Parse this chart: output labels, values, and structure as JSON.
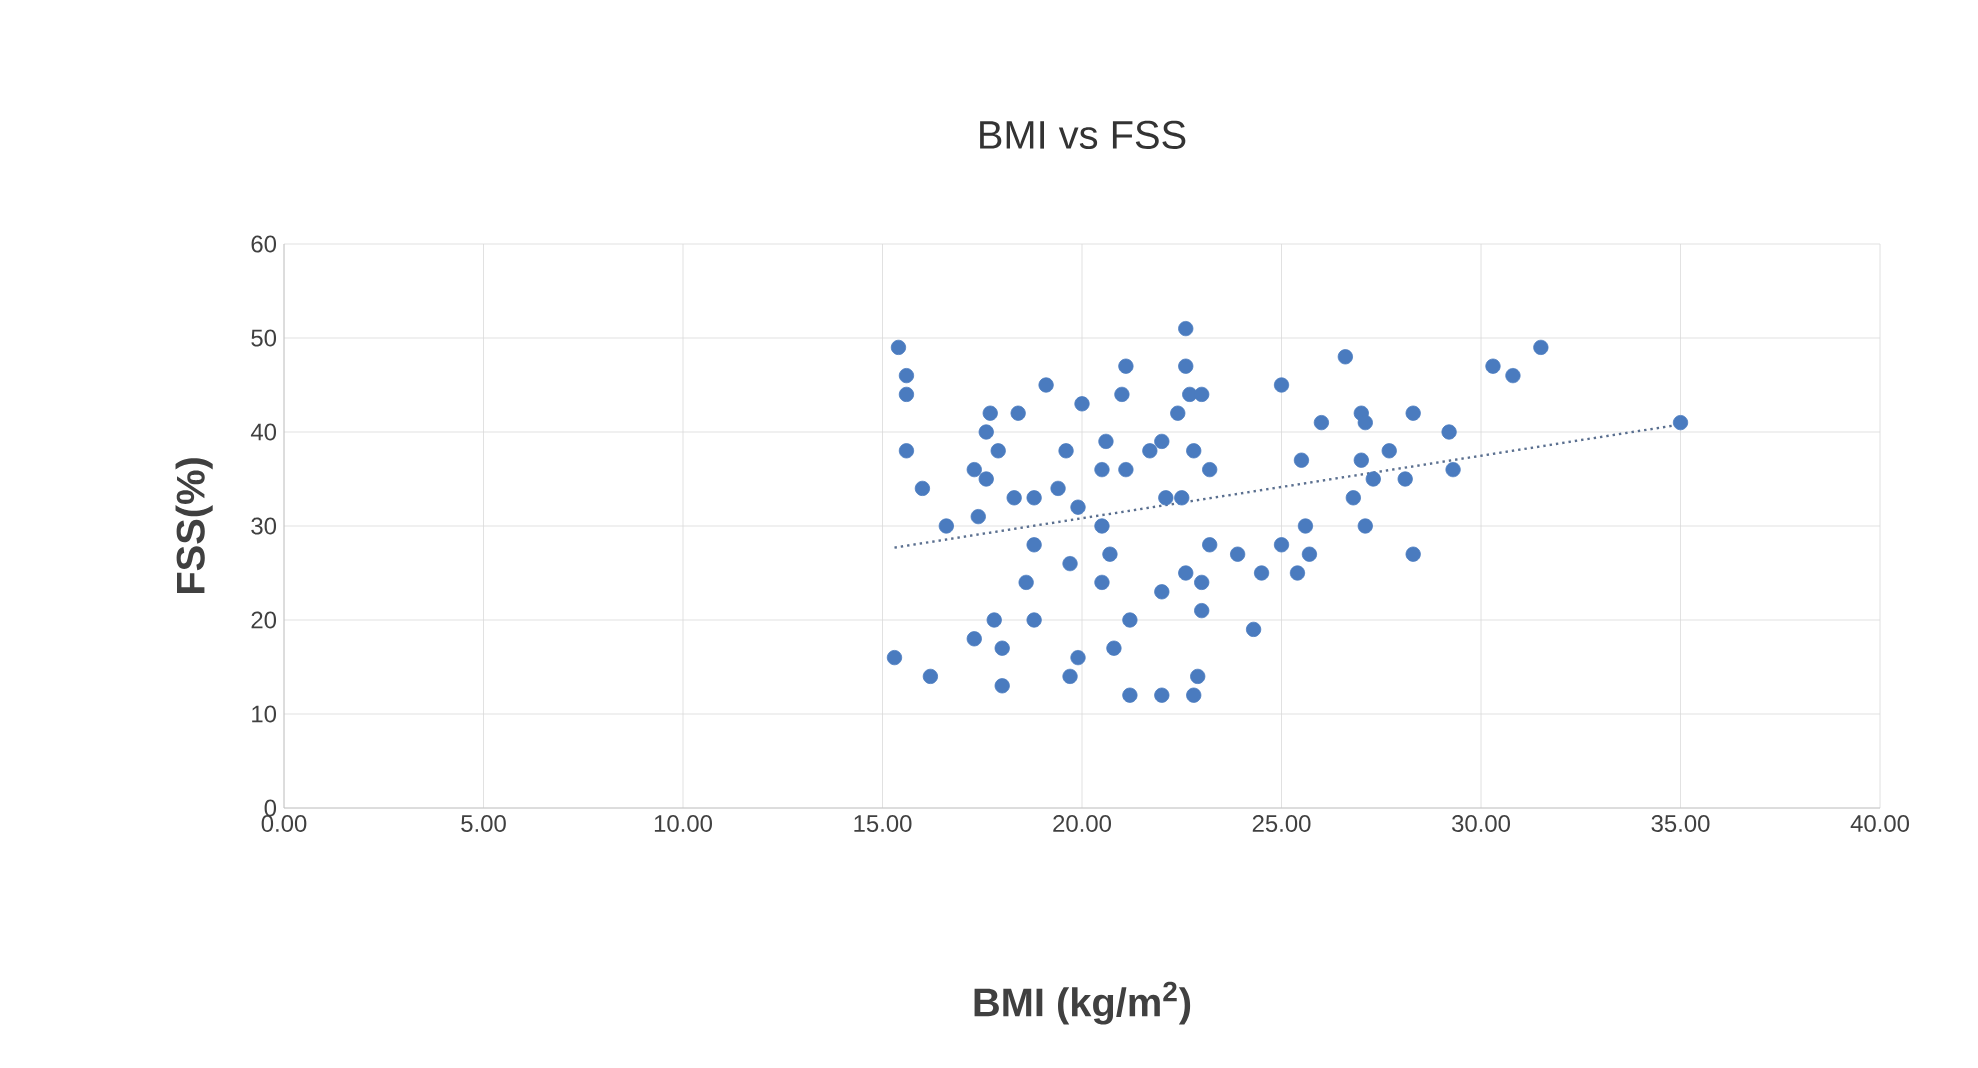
{
  "chart_data": {
    "type": "scatter",
    "title": "BMI vs FSS",
    "xlabel": "BMI (kg/m$^{2}$)",
    "ylabel": "FSS(%)",
    "xlim": [
      0,
      40
    ],
    "ylim": [
      0,
      60
    ],
    "xticks": [
      {
        "value": 0,
        "label": "0.00"
      },
      {
        "value": 5,
        "label": "5.00"
      },
      {
        "value": 10,
        "label": "10.00"
      },
      {
        "value": 15,
        "label": "15.00"
      },
      {
        "value": 20,
        "label": "20.00"
      },
      {
        "value": 25,
        "label": "25.00"
      },
      {
        "value": 30,
        "label": "30.00"
      },
      {
        "value": 35,
        "label": "35.00"
      },
      {
        "value": 40,
        "label": "40.00"
      }
    ],
    "yticks": [
      0,
      10,
      20,
      30,
      40,
      50,
      60
    ],
    "grid": true,
    "series": [
      {
        "color": "#4a7bbf",
        "x": [
          15.4,
          15.6,
          15.6,
          15.6,
          16.0,
          16.6,
          15.3,
          16.2,
          19.1,
          17.7,
          18.4,
          17.6,
          17.9,
          17.3,
          17.6,
          17.4,
          18.3,
          18.8,
          19.4,
          19.9,
          18.8,
          18.6,
          17.8,
          18.8,
          17.3,
          18.0,
          18.0,
          19.7,
          19.6,
          20.0,
          20.5,
          20.7,
          20.5,
          20.6,
          20.5,
          21.1,
          21.0,
          21.1,
          21.7,
          22.0,
          22.7,
          22.4,
          23.0,
          22.6,
          22.6,
          22.8,
          23.2,
          22.1,
          22.5,
          21.2,
          20.8,
          19.9,
          19.7,
          22.0,
          22.6,
          23.0,
          23.2,
          23.0,
          21.2,
          22.0,
          22.9,
          22.8,
          23.9,
          24.5,
          24.3,
          25.0,
          25.4,
          25.7,
          25.6,
          25.5,
          25.0,
          26.0,
          26.6,
          27.0,
          27.1,
          27.0,
          26.8,
          27.1,
          31.5,
          30.3,
          30.8,
          28.3,
          29.2,
          29.3,
          27.7,
          27.3,
          28.1,
          28.3,
          35.0
        ],
        "values": [
          49,
          46,
          44,
          38,
          34,
          30,
          16,
          14,
          45,
          42,
          42,
          40,
          38,
          36,
          35,
          31,
          33,
          33,
          34,
          32,
          28,
          24,
          20,
          20,
          18,
          17,
          13,
          26,
          38,
          43,
          30,
          27,
          24,
          39,
          36,
          47,
          44,
          36,
          38,
          39,
          44,
          42,
          44,
          47,
          51,
          38,
          36,
          33,
          33,
          20,
          17,
          16,
          14,
          23,
          25,
          24,
          28,
          21,
          12,
          12,
          14,
          12,
          27,
          25,
          19,
          28,
          25,
          27,
          30,
          37,
          45,
          41,
          48,
          42,
          41,
          37,
          33,
          30,
          49,
          47,
          46,
          42,
          40,
          36,
          38,
          35,
          35,
          27,
          41
        ]
      },
      {
        "type": "line",
        "color": "#5a6f8f",
        "line_style": "dotted",
        "x": [
          15.3,
          35.0
        ],
        "values": [
          27.7,
          40.8
        ]
      }
    ]
  }
}
